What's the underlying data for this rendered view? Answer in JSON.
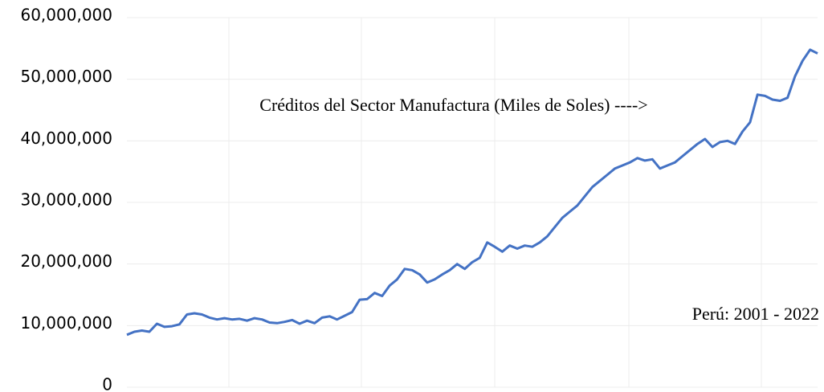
{
  "chart_data": {
    "type": "line",
    "annotations": [
      "Créditos del Sector Manufactura (Miles de Soles) ---->",
      "Perú: 2001 - 2022"
    ],
    "series": [
      {
        "color": "#4472c4",
        "values": [
          8500000,
          9000000,
          9200000,
          9000000,
          10300000,
          9800000,
          9900000,
          10200000,
          11800000,
          12000000,
          11800000,
          11300000,
          11000000,
          11200000,
          11000000,
          11100000,
          10800000,
          11200000,
          11000000,
          10500000,
          10400000,
          10600000,
          10900000,
          10300000,
          10800000,
          10400000,
          11300000,
          11500000,
          11000000,
          11600000,
          12200000,
          14200000,
          14300000,
          15300000,
          14800000,
          16500000,
          17500000,
          19200000,
          19000000,
          18300000,
          17000000,
          17500000,
          18300000,
          19000000,
          20000000,
          19200000,
          20300000,
          21000000,
          23500000,
          22800000,
          22000000,
          23000000,
          22500000,
          23000000,
          22800000,
          23500000,
          24500000,
          26000000,
          27500000,
          28500000,
          29500000,
          31000000,
          32500000,
          33500000,
          34500000,
          35500000,
          36000000,
          36500000,
          37200000,
          36800000,
          37000000,
          35500000,
          36000000,
          36500000,
          37500000,
          38500000,
          39500000,
          40300000,
          39000000,
          39800000,
          40000000,
          39500000,
          41500000,
          43000000,
          47500000,
          47300000,
          46700000,
          46500000,
          47000000,
          50500000,
          53000000,
          54800000,
          54200000
        ]
      }
    ],
    "ylim": [
      0,
      60000000
    ],
    "yticks": [
      0,
      {
        "value": 10000000,
        "label": "10,000,000"
      },
      {
        "value": 20000000,
        "label": "20,000,000"
      },
      {
        "value": 30000000,
        "label": "30,000,000"
      },
      {
        "value": 40000000,
        "label": "40,000,000"
      },
      {
        "value": 50000000,
        "label": "50,000,000"
      },
      {
        "value": 60000000,
        "label": "60,000,000"
      }
    ],
    "grid": true
  }
}
